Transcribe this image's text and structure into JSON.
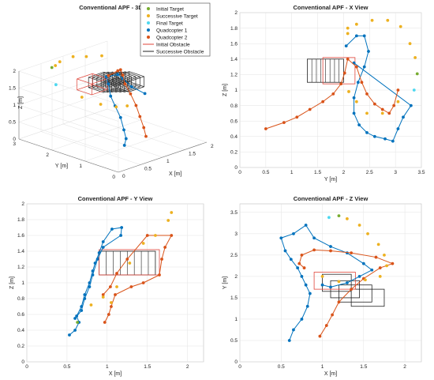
{
  "colors": {
    "initial_target": "#77ac30",
    "successive_target": "#edb120",
    "final_target": "#4dd8f0",
    "quad1": "#0072bd",
    "quad2": "#d95319",
    "initial_obstacle": "#e0453a",
    "successive_obstacle": "#222222"
  },
  "chart_data": [
    {
      "name": "Conventional APF - 3D View",
      "type": "scatter",
      "title": "Conventional APF - 3D View",
      "xlabel": "X [m]",
      "ylabel": "Y [m]",
      "zlabel": "Z [m]",
      "xlim": [
        0,
        2
      ],
      "ylim": [
        0,
        3
      ],
      "zlim": [
        0,
        2
      ],
      "xticks": [
        "0",
        "0.5",
        "1",
        "1.5",
        "2"
      ],
      "yticks": [
        "0",
        "1",
        "2",
        "3"
      ],
      "zticks": [
        "0",
        "0.5",
        "1",
        "1.5",
        "2"
      ],
      "legend": {
        "position": "top-right",
        "entries": [
          "Initial Target",
          "Successive Target",
          "Final Target",
          "Quadcopter 1",
          "Quadcopter 2",
          "Initial Obstacle",
          "Successive Obstacle"
        ]
      },
      "initial_target": [
        [
          1.06,
          3.42,
          1.5
        ]
      ],
      "final_target": [
        [
          1.1,
          3.35,
          1.0
        ]
      ],
      "successive_targets": [
        [
          1.5,
          2.5,
          1.95
        ],
        [
          1.3,
          2.7,
          1.95
        ],
        [
          1.15,
          2.9,
          1.95
        ],
        [
          1.0,
          3.1,
          1.8
        ],
        [
          1.05,
          3.3,
          1.6
        ],
        [
          1.2,
          2.7,
          0.8
        ],
        [
          1.4,
          2.4,
          0.6
        ],
        [
          1.6,
          2.2,
          0.5
        ],
        [
          1.7,
          2.0,
          0.55
        ]
      ],
      "quad1": [
        [
          0.55,
          0.55,
          0.37
        ],
        [
          0.7,
          0.7,
          0.45
        ],
        [
          0.8,
          0.9,
          0.6
        ],
        [
          0.95,
          1.2,
          0.8
        ],
        [
          1.05,
          1.5,
          1.0
        ],
        [
          1.1,
          1.7,
          1.2
        ],
        [
          1.2,
          1.9,
          1.45
        ],
        [
          1.3,
          2.1,
          1.55
        ],
        [
          1.45,
          1.95,
          1.6
        ],
        [
          1.6,
          2.0,
          1.4
        ],
        [
          1.65,
          1.8,
          1.2
        ],
        [
          1.8,
          1.6,
          1.0
        ]
      ],
      "quad2": [
        [
          1.0,
          0.5,
          0.45
        ],
        [
          1.1,
          0.7,
          0.6
        ],
        [
          1.2,
          0.95,
          0.8
        ],
        [
          1.3,
          1.2,
          1.0
        ],
        [
          1.4,
          1.5,
          1.2
        ],
        [
          1.5,
          1.8,
          1.35
        ],
        [
          1.6,
          2.0,
          1.5
        ],
        [
          1.7,
          2.2,
          1.55
        ],
        [
          1.75,
          2.35,
          1.45
        ],
        [
          1.65,
          2.5,
          1.3
        ]
      ]
    },
    {
      "name": "Conventional APF - X View",
      "type": "scatter",
      "title": "Conventional APF - X View",
      "xlabel": "Y [m]",
      "ylabel": "Z [m]",
      "xlim": [
        0,
        3.5
      ],
      "ylim": [
        0,
        2
      ],
      "xticks": [
        "0",
        "0.5",
        "1",
        "1.5",
        "2",
        "2.5",
        "3",
        "3.5"
      ],
      "yticks": [
        "0",
        "0.2",
        "0.4",
        "0.6",
        "0.8",
        "1",
        "1.2",
        "1.4",
        "1.6",
        "1.8",
        "2"
      ],
      "initial_target": [
        [
          3.42,
          1.21
        ]
      ],
      "final_target": [
        [
          3.36,
          1.0
        ]
      ],
      "successive_targets": [
        [
          2.08,
          1.8
        ],
        [
          2.25,
          1.85
        ],
        [
          2.55,
          1.9
        ],
        [
          2.85,
          1.9
        ],
        [
          3.1,
          1.82
        ],
        [
          3.28,
          1.6
        ],
        [
          3.38,
          1.42
        ],
        [
          3.05,
          0.85
        ],
        [
          2.75,
          0.7
        ],
        [
          2.45,
          0.7
        ],
        [
          2.25,
          0.85
        ],
        [
          2.1,
          0.98
        ],
        [
          2.08,
          1.73
        ]
      ],
      "quad1": [
        [
          2.05,
          1.57
        ],
        [
          2.25,
          1.7
        ],
        [
          2.4,
          1.7
        ],
        [
          2.48,
          1.5
        ],
        [
          2.4,
          1.3
        ],
        [
          2.28,
          1.1
        ],
        [
          2.2,
          0.9
        ],
        [
          2.2,
          0.7
        ],
        [
          2.3,
          0.55
        ],
        [
          2.45,
          0.45
        ],
        [
          2.6,
          0.4
        ],
        [
          2.8,
          0.37
        ],
        [
          2.95,
          0.34
        ],
        [
          3.05,
          0.5
        ],
        [
          3.15,
          0.65
        ],
        [
          3.3,
          0.8
        ],
        [
          2.2,
          1.35
        ]
      ],
      "quad2": [
        [
          0.5,
          0.5
        ],
        [
          0.85,
          0.58
        ],
        [
          1.1,
          0.65
        ],
        [
          1.35,
          0.75
        ],
        [
          1.6,
          0.85
        ],
        [
          1.8,
          0.95
        ],
        [
          1.95,
          1.08
        ],
        [
          2.02,
          1.22
        ],
        [
          2.08,
          1.4
        ],
        [
          2.25,
          1.3
        ],
        [
          2.35,
          1.1
        ],
        [
          2.45,
          0.95
        ],
        [
          2.6,
          0.82
        ],
        [
          2.75,
          0.75
        ],
        [
          2.88,
          0.7
        ],
        [
          2.97,
          0.8
        ],
        [
          3.05,
          1.0
        ]
      ],
      "obstacles": [
        [
          1.3,
          1.1,
          2.0,
          1.4
        ]
      ],
      "initial_obstacle": [
        1.6,
        1.08,
        2.22,
        1.42
      ]
    },
    {
      "name": "Conventional APF - Y View",
      "type": "scatter",
      "title": "Conventional APF - Y View",
      "xlabel": "X [m]",
      "ylabel": "Z [m]",
      "xlim": [
        0,
        2.2
      ],
      "ylim": [
        0,
        2
      ],
      "xticks": [
        "0",
        "0.5",
        "1",
        "1.5",
        "2"
      ],
      "yticks": [
        "0",
        "0.2",
        "0.4",
        "0.6",
        "0.8",
        "1",
        "1.2",
        "1.4",
        "1.6",
        "1.8",
        "2"
      ],
      "initial_target": [
        [
          0.63,
          0.5
        ]
      ],
      "final_target": [],
      "successive_targets": [
        [
          1.8,
          1.89
        ],
        [
          1.76,
          1.79
        ],
        [
          1.6,
          1.6
        ],
        [
          1.45,
          1.5
        ],
        [
          1.28,
          1.25
        ],
        [
          1.12,
          0.95
        ],
        [
          0.95,
          0.82
        ],
        [
          0.8,
          0.72
        ],
        [
          1.05,
          0.75
        ]
      ],
      "quad1": [
        [
          0.53,
          0.34
        ],
        [
          0.6,
          0.4
        ],
        [
          0.65,
          0.5
        ],
        [
          0.62,
          0.58
        ],
        [
          0.68,
          0.7
        ],
        [
          0.72,
          0.85
        ],
        [
          0.78,
          1.0
        ],
        [
          0.82,
          1.15
        ],
        [
          0.85,
          1.25
        ],
        [
          0.9,
          1.38
        ],
        [
          0.95,
          1.52
        ],
        [
          1.06,
          1.68
        ],
        [
          1.18,
          1.7
        ],
        [
          1.17,
          1.6
        ],
        [
          0.95,
          1.45
        ],
        [
          0.88,
          1.3
        ],
        [
          0.82,
          1.1
        ],
        [
          0.78,
          0.95
        ],
        [
          0.72,
          0.8
        ],
        [
          0.68,
          0.65
        ],
        [
          0.6,
          0.55
        ]
      ],
      "quad2": [
        [
          0.97,
          0.5
        ],
        [
          1.02,
          0.6
        ],
        [
          1.05,
          0.7
        ],
        [
          1.1,
          0.85
        ],
        [
          1.3,
          0.95
        ],
        [
          1.45,
          1.0
        ],
        [
          1.65,
          1.1
        ],
        [
          1.68,
          1.3
        ],
        [
          1.72,
          1.45
        ],
        [
          1.8,
          1.6
        ],
        [
          1.5,
          1.6
        ],
        [
          1.25,
          1.3
        ],
        [
          1.12,
          1.12
        ],
        [
          1.04,
          0.95
        ],
        [
          0.95,
          0.85
        ]
      ],
      "obstacles": [
        [
          0.9,
          1.1,
          1.6,
          1.4
        ]
      ],
      "initial_obstacle": [
        0.9,
        1.1,
        1.65,
        1.42
      ]
    },
    {
      "name": "Conventional APF - Z View",
      "type": "scatter",
      "title": "Conventional APF - Z View",
      "xlabel": "X [m]",
      "ylabel": "Y [m]",
      "xlim": [
        0,
        2.2
      ],
      "ylim": [
        0,
        3.7
      ],
      "xticks": [
        "0",
        "0.5",
        "1",
        "1.5",
        "2"
      ],
      "yticks": [
        "0",
        "0.5",
        "1",
        "1.5",
        "2",
        "2.5",
        "3",
        "3.5"
      ],
      "initial_target": [
        [
          1.2,
          3.42
        ]
      ],
      "final_target": [
        [
          1.08,
          3.38
        ]
      ],
      "successive_targets": [
        [
          1.3,
          3.35
        ],
        [
          1.45,
          3.2
        ],
        [
          1.55,
          3.0
        ],
        [
          1.68,
          2.75
        ],
        [
          1.75,
          2.5
        ],
        [
          1.78,
          2.25
        ],
        [
          1.7,
          2.0
        ],
        [
          1.52,
          1.92
        ],
        [
          1.2,
          1.88
        ],
        [
          1.0,
          2.0
        ]
      ],
      "quad1": [
        [
          0.6,
          0.5
        ],
        [
          0.65,
          0.75
        ],
        [
          0.75,
          1.0
        ],
        [
          0.82,
          1.3
        ],
        [
          0.85,
          1.6
        ],
        [
          0.8,
          1.8
        ],
        [
          0.75,
          2.0
        ],
        [
          0.7,
          2.2
        ],
        [
          0.62,
          2.4
        ],
        [
          0.55,
          2.6
        ],
        [
          0.5,
          2.9
        ],
        [
          0.65,
          3.0
        ],
        [
          0.8,
          3.2
        ],
        [
          0.9,
          2.9
        ],
        [
          1.1,
          2.7
        ],
        [
          1.3,
          2.55
        ],
        [
          1.5,
          2.3
        ],
        [
          1.6,
          2.15
        ],
        [
          1.45,
          2.0
        ],
        [
          1.3,
          1.85
        ],
        [
          1.1,
          1.75
        ],
        [
          1.0,
          1.8
        ]
      ],
      "quad2": [
        [
          0.97,
          0.6
        ],
        [
          1.05,
          0.85
        ],
        [
          1.12,
          1.1
        ],
        [
          1.2,
          1.4
        ],
        [
          1.35,
          1.7
        ],
        [
          1.5,
          1.95
        ],
        [
          1.7,
          2.2
        ],
        [
          1.85,
          2.3
        ],
        [
          1.65,
          2.45
        ],
        [
          1.35,
          2.55
        ],
        [
          1.1,
          2.6
        ],
        [
          0.9,
          2.62
        ],
        [
          0.75,
          2.5
        ],
        [
          0.72,
          2.3
        ],
        [
          0.78,
          2.2
        ]
      ],
      "obstacles": [
        [
          1.0,
          1.65,
          1.35,
          2.05
        ],
        [
          1.1,
          1.5,
          1.45,
          1.9
        ],
        [
          1.2,
          1.4,
          1.6,
          1.8
        ],
        [
          1.35,
          1.3,
          1.75,
          1.7
        ]
      ],
      "initial_obstacle": [
        0.9,
        1.7,
        1.4,
        2.1
      ]
    }
  ]
}
